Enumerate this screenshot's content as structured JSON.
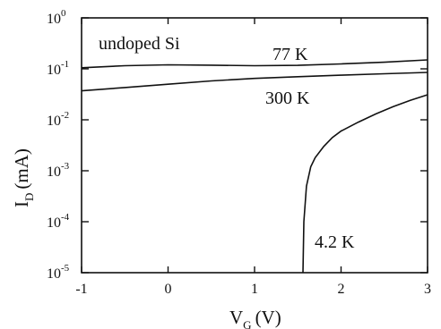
{
  "chart_data": {
    "type": "line",
    "title": "",
    "xlabel": {
      "main": "V",
      "sub": "G",
      "unit": "(V)"
    },
    "ylabel": {
      "main": "I",
      "sub": "D",
      "unit": "(mA)"
    },
    "xlim": [
      -1,
      3
    ],
    "ylim": [
      1e-05,
      1
    ],
    "yscale": "log",
    "grid": false,
    "x_ticks": [
      "-1",
      "0",
      "1",
      "2",
      "3"
    ],
    "y_ticks": [
      {
        "value": 1,
        "base": "10",
        "exp": "0"
      },
      {
        "value": 0.1,
        "base": "10",
        "exp": "-1"
      },
      {
        "value": 0.01,
        "base": "10",
        "exp": "-2"
      },
      {
        "value": 0.001,
        "base": "10",
        "exp": "-3"
      },
      {
        "value": 0.0001,
        "base": "10",
        "exp": "-4"
      },
      {
        "value": 1e-05,
        "base": "10",
        "exp": "-5"
      }
    ],
    "annotations": {
      "sample": "undoped Si",
      "t77": "77 K",
      "t300": "300 K",
      "t4": "4.2 K"
    },
    "series": [
      {
        "name": "77 K",
        "x": [
          -1,
          -0.5,
          0,
          0.5,
          1,
          1.5,
          2,
          2.5,
          3
        ],
        "y": [
          0.105,
          0.115,
          0.12,
          0.118,
          0.115,
          0.117,
          0.125,
          0.135,
          0.15
        ]
      },
      {
        "name": "300 K",
        "x": [
          -1,
          -0.5,
          0,
          0.5,
          1,
          1.5,
          2,
          2.5,
          3
        ],
        "y": [
          0.037,
          0.043,
          0.05,
          0.058,
          0.065,
          0.07,
          0.075,
          0.08,
          0.085
        ]
      },
      {
        "name": "4.2 K",
        "x": [
          1.56,
          1.57,
          1.6,
          1.65,
          1.7,
          1.8,
          1.9,
          2,
          2.2,
          2.4,
          2.6,
          2.8,
          3
        ],
        "y": [
          1e-05,
          0.0001,
          0.0005,
          0.0012,
          0.0018,
          0.003,
          0.0045,
          0.006,
          0.009,
          0.013,
          0.018,
          0.024,
          0.031
        ]
      }
    ]
  }
}
